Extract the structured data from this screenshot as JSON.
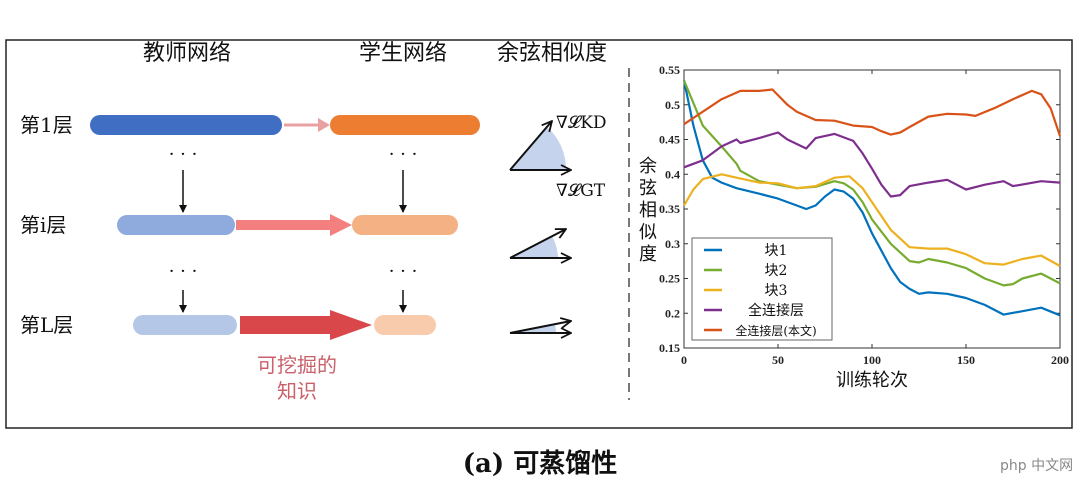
{
  "diagram": {
    "headers": {
      "teacher": "教师网络",
      "student": "学生网络",
      "cosine": "余弦相似度"
    },
    "rows": [
      {
        "label": "第1层",
        "teacher_color": "#3f6ec3",
        "student_color": "#ed7d31",
        "arrow_color": "#e8a0a0"
      },
      {
        "label": "第i层",
        "teacher_color": "#8faadc",
        "student_color": "#f4b183",
        "arrow_color": "#f47f7f"
      },
      {
        "label": "第L层",
        "teacher_color": "#b4c7e7",
        "student_color": "#f8cbad",
        "arrow_color": "#d9474b"
      }
    ],
    "dots": "· · ·",
    "knowledge_label_line1": "可挖掘的",
    "knowledge_label_line2": "知识",
    "grad_kd": "∇𝓛KD",
    "grad_gt": "∇𝓛GT",
    "caption": "(a) 可蒸馏性",
    "watermark": "php 中文网"
  },
  "chart_data": {
    "type": "line",
    "xlabel": "训练轮次",
    "ylabel": "余弦相似度",
    "xlim": [
      0,
      200
    ],
    "ylim": [
      0.15,
      0.55
    ],
    "xticks": [
      0,
      50,
      100,
      150,
      200
    ],
    "yticks": [
      0.15,
      0.2,
      0.25,
      0.3,
      0.35,
      0.4,
      0.45,
      0.5,
      0.55
    ],
    "legend_position": "bottom-left",
    "series": [
      {
        "name": "块1",
        "color": "#0072bd",
        "x": [
          0,
          5,
          10,
          15,
          20,
          28,
          40,
          50,
          60,
          65,
          70,
          75,
          80,
          85,
          90,
          95,
          100,
          105,
          110,
          115,
          120,
          125,
          130,
          140,
          150,
          160,
          170,
          180,
          190,
          200
        ],
        "y": [
          0.535,
          0.47,
          0.42,
          0.395,
          0.388,
          0.38,
          0.372,
          0.365,
          0.355,
          0.35,
          0.355,
          0.368,
          0.378,
          0.375,
          0.365,
          0.345,
          0.315,
          0.29,
          0.265,
          0.245,
          0.235,
          0.228,
          0.23,
          0.228,
          0.222,
          0.212,
          0.198,
          0.203,
          0.208,
          0.197
        ]
      },
      {
        "name": "块2",
        "color": "#77ac30",
        "x": [
          0,
          10,
          20,
          28,
          30,
          40,
          50,
          60,
          70,
          80,
          85,
          90,
          95,
          100,
          110,
          120,
          125,
          130,
          140,
          150,
          160,
          170,
          175,
          180,
          190,
          200
        ],
        "y": [
          0.535,
          0.47,
          0.44,
          0.415,
          0.405,
          0.39,
          0.385,
          0.38,
          0.382,
          0.39,
          0.387,
          0.378,
          0.36,
          0.335,
          0.3,
          0.275,
          0.273,
          0.278,
          0.273,
          0.265,
          0.25,
          0.24,
          0.242,
          0.25,
          0.257,
          0.243
        ]
      },
      {
        "name": "块3",
        "color": "#edb120",
        "x": [
          0,
          5,
          10,
          20,
          28,
          40,
          50,
          60,
          70,
          80,
          88,
          95,
          100,
          110,
          120,
          130,
          140,
          150,
          160,
          170,
          180,
          190,
          200
        ],
        "y": [
          0.355,
          0.378,
          0.393,
          0.4,
          0.395,
          0.388,
          0.387,
          0.38,
          0.383,
          0.395,
          0.397,
          0.38,
          0.36,
          0.32,
          0.295,
          0.293,
          0.293,
          0.285,
          0.272,
          0.27,
          0.278,
          0.283,
          0.268
        ]
      },
      {
        "name": "全连接层",
        "color": "#7e2f8e",
        "x": [
          0,
          10,
          20,
          28,
          30,
          40,
          50,
          55,
          65,
          70,
          80,
          90,
          95,
          100,
          105,
          110,
          115,
          120,
          130,
          140,
          150,
          160,
          170,
          175,
          190,
          200
        ],
        "y": [
          0.41,
          0.42,
          0.44,
          0.45,
          0.445,
          0.452,
          0.46,
          0.45,
          0.437,
          0.452,
          0.458,
          0.448,
          0.43,
          0.408,
          0.385,
          0.368,
          0.37,
          0.383,
          0.388,
          0.392,
          0.378,
          0.385,
          0.39,
          0.383,
          0.39,
          0.388
        ]
      },
      {
        "name": "全连接层(本文)",
        "color": "#d95319",
        "x": [
          0,
          10,
          20,
          30,
          40,
          47,
          55,
          60,
          70,
          80,
          90,
          100,
          105,
          110,
          115,
          120,
          130,
          140,
          150,
          155,
          165,
          175,
          185,
          190,
          195,
          200
        ],
        "y": [
          0.472,
          0.49,
          0.508,
          0.52,
          0.52,
          0.522,
          0.5,
          0.49,
          0.478,
          0.477,
          0.47,
          0.468,
          0.462,
          0.457,
          0.46,
          0.468,
          0.483,
          0.487,
          0.486,
          0.484,
          0.495,
          0.508,
          0.52,
          0.515,
          0.495,
          0.455
        ]
      }
    ]
  }
}
